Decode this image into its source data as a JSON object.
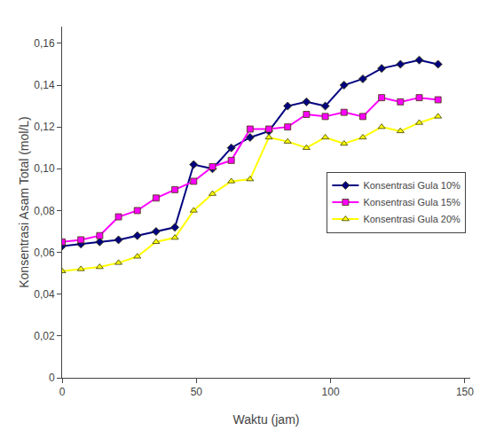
{
  "chart_data": {
    "type": "line",
    "xlabel": "Waktu (jam)",
    "ylabel": "Konsentrasi Asam Total (mol/L)",
    "x": [
      0,
      7,
      14,
      21,
      28,
      35,
      42,
      49,
      56,
      63,
      70,
      77,
      84,
      91,
      98,
      105,
      112,
      119,
      126,
      133,
      140
    ],
    "series": [
      {
        "name": "Konsentrasi Gula 10%",
        "color": "#000080",
        "marker": "diamond",
        "values": [
          0.063,
          0.064,
          0.065,
          0.066,
          0.068,
          0.07,
          0.072,
          0.102,
          0.1,
          0.11,
          0.115,
          0.118,
          0.13,
          0.132,
          0.13,
          0.14,
          0.143,
          0.148,
          0.15,
          0.152,
          0.15
        ]
      },
      {
        "name": "Konsentrasi Gula 15%",
        "color": "#FF00FF",
        "marker": "square",
        "values": [
          0.065,
          0.066,
          0.068,
          0.077,
          0.08,
          0.086,
          0.09,
          0.094,
          0.101,
          0.104,
          0.119,
          0.119,
          0.12,
          0.126,
          0.125,
          0.127,
          0.125,
          0.134,
          0.132,
          0.134,
          0.133
        ]
      },
      {
        "name": "Konsentrasi Gula 20%",
        "color": "#FFFF00",
        "marker": "triangle-up",
        "values": [
          0.051,
          0.052,
          0.053,
          0.055,
          0.058,
          0.065,
          0.067,
          0.08,
          0.088,
          0.094,
          0.095,
          0.115,
          0.113,
          0.11,
          0.115,
          0.112,
          0.115,
          0.12,
          0.118,
          0.122,
          0.125
        ]
      }
    ],
    "xlim": [
      0,
      152
    ],
    "xticks": [
      0,
      50,
      100,
      150
    ],
    "ylim": [
      0,
      0.168
    ],
    "yticks": [
      0,
      {
        "value": 0.02,
        "label": "0,02"
      },
      {
        "value": 0.04,
        "label": "0,04"
      },
      {
        "value": 0.06,
        "label": "0,06"
      },
      {
        "value": 0.08,
        "label": "0,08"
      },
      {
        "value": 0.1,
        "label": "0,10"
      },
      {
        "value": 0.12,
        "label": "0,12"
      },
      {
        "value": 0.14,
        "label": "0,14"
      },
      {
        "value": 0.16,
        "label": "0,16"
      }
    ],
    "grid": false,
    "legend": "center right"
  }
}
